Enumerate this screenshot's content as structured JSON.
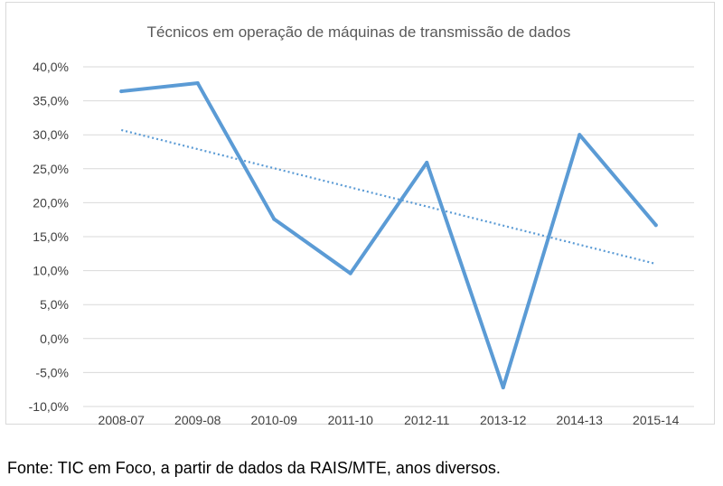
{
  "chart_data": {
    "type": "line",
    "title": "Técnicos em operação de máquinas de transmissão de dados",
    "categories": [
      "2008-07",
      "2009-08",
      "2010-09",
      "2011-10",
      "2012-11",
      "2013-12",
      "2014-13",
      "2015-14"
    ],
    "series": [
      {
        "values": [
          36.4,
          37.6,
          17.6,
          9.6,
          25.9,
          -7.2,
          30.0,
          16.7
        ],
        "color": "#5b9bd5"
      }
    ],
    "trendline": {
      "type": "linear",
      "style": "dotted",
      "color": "#5b9bd5",
      "start": 30.7,
      "end": 11.0
    },
    "y_ticks": [
      "40,0%",
      "35,0%",
      "30,0%",
      "25,0%",
      "20,0%",
      "15,0%",
      "10,0%",
      "5,0%",
      "0,0%",
      "-5,0%",
      "-10,0%"
    ],
    "y_tick_values": [
      40,
      35,
      30,
      25,
      20,
      15,
      10,
      5,
      0,
      -5,
      -10
    ],
    "ylim": [
      -10,
      40
    ],
    "grid": true,
    "legend": "none"
  },
  "source_note": "Fonte: TIC em Foco, a partir de dados da RAIS/MTE, anos diversos."
}
